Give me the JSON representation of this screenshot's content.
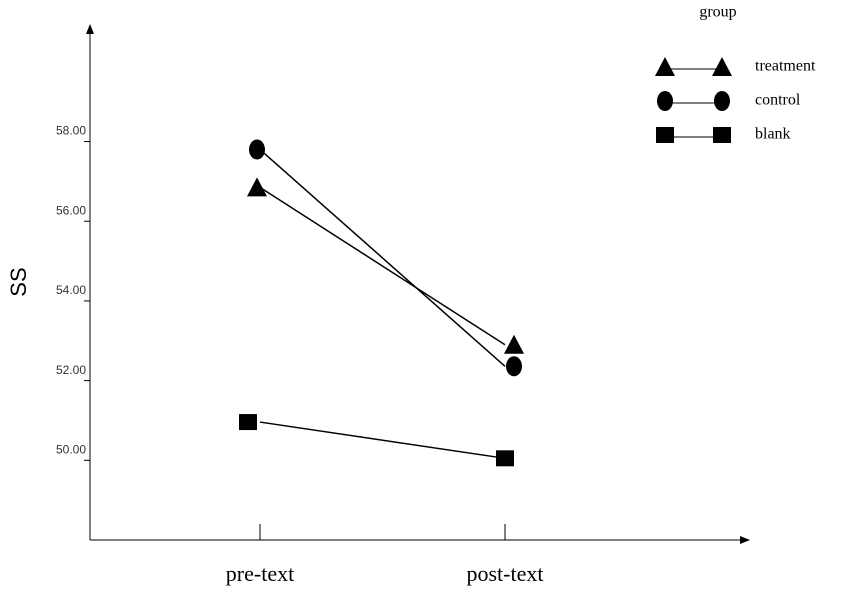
{
  "chart_data": {
    "type": "line",
    "y_label": "SS",
    "legend_title": "group",
    "categories": [
      "pre-text",
      "post-text"
    ],
    "series": [
      {
        "name": "treatment",
        "color": "#000000",
        "marker": "triangle",
        "values": [
          56.85,
          52.9
        ]
      },
      {
        "name": "control",
        "color": "#000000",
        "marker": "circle",
        "values": [
          57.8,
          52.36
        ]
      },
      {
        "name": "blank",
        "color": "#000000",
        "marker": "square",
        "values": [
          50.96,
          50.05
        ]
      }
    ],
    "ylim": [
      48,
      60.8
    ],
    "yticks": [
      {
        "value": 50,
        "label": "50.00"
      },
      {
        "value": 52,
        "label": "52.00"
      },
      {
        "value": 54,
        "label": "54.00"
      },
      {
        "value": 56,
        "label": "56.00"
      },
      {
        "value": 58,
        "label": "58.00"
      }
    ],
    "legend": "upper right"
  }
}
